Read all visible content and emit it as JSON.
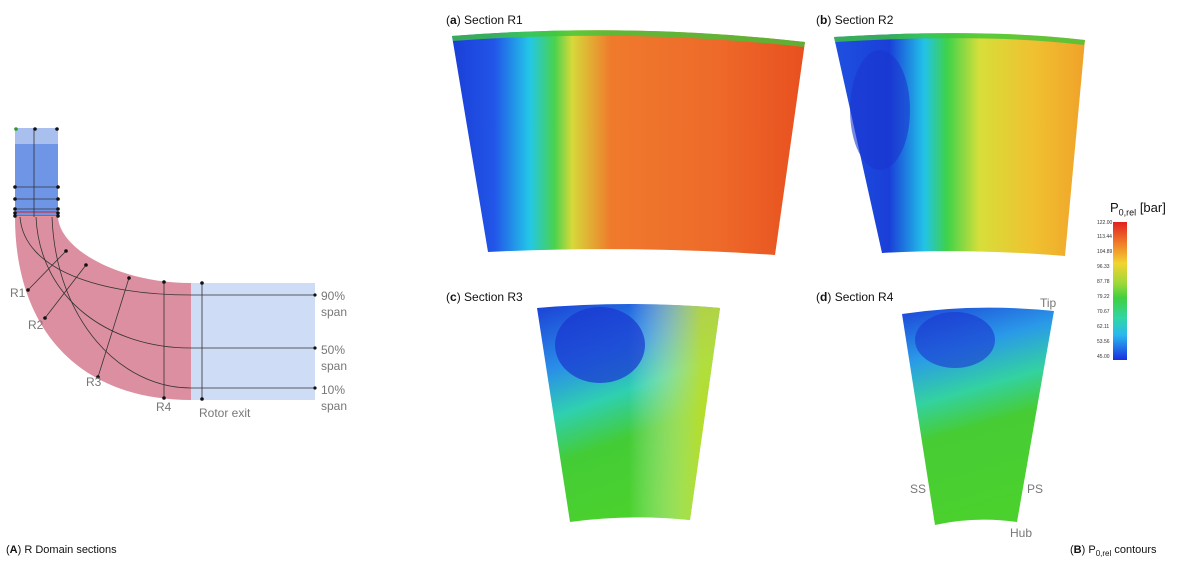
{
  "panel_a": {
    "span_labels": [
      "90%",
      "span",
      "50%",
      "span",
      "10%",
      "span"
    ],
    "section_labels": [
      "R1",
      "R2",
      "R3",
      "R4"
    ],
    "rotor_exit": "Rotor exit",
    "caption_letter": "A",
    "caption_text": "R Domain sections"
  },
  "panel_b": {
    "sections": [
      {
        "letter": "a",
        "title": "Section R1"
      },
      {
        "letter": "b",
        "title": "Section R2"
      },
      {
        "letter": "c",
        "title": "Section R3"
      },
      {
        "letter": "d",
        "title": "Section R4"
      }
    ],
    "annotations": {
      "tip": "Tip",
      "ss": "SS",
      "ps": "PS",
      "hub": "Hub"
    },
    "colorbar": {
      "symbol": "P",
      "subscript": "0,rel",
      "unit": "[bar]",
      "ticks": [
        "122.00",
        "113.44",
        "104.89",
        "96.33",
        "87.78",
        "79.22",
        "70.67",
        "62.11",
        "53.56",
        "45.00"
      ]
    },
    "caption_letter": "B",
    "caption_symbol": "P",
    "caption_subscript": "0,rel",
    "caption_text": "contours"
  },
  "colors": {
    "inlet_blue": "#6f95e6",
    "rotor_red": "#dc8fa0",
    "exit_blue": "#cfdcf6"
  }
}
